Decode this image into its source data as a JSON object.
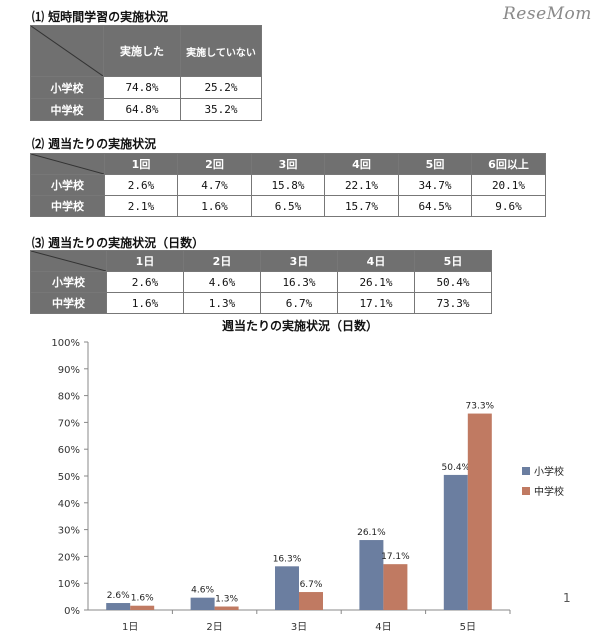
{
  "watermark": "ReseMom",
  "page_number": "1",
  "section1": {
    "title": "⑴ 短時間学習の実施状況",
    "columns": [
      "実施した",
      "実施していない"
    ],
    "rows": [
      {
        "label": "小学校",
        "values": [
          "74.8%",
          "25.2%"
        ]
      },
      {
        "label": "中学校",
        "values": [
          "64.8%",
          "35.2%"
        ]
      }
    ]
  },
  "section2": {
    "title": "⑵ 週当たりの実施状況",
    "columns": [
      "1回",
      "2回",
      "3回",
      "4回",
      "5回",
      "6回以上"
    ],
    "rows": [
      {
        "label": "小学校",
        "values": [
          "2.6%",
          "4.7%",
          "15.8%",
          "22.1%",
          "34.7%",
          "20.1%"
        ]
      },
      {
        "label": "中学校",
        "values": [
          "2.1%",
          "1.6%",
          "6.5%",
          "15.7%",
          "64.5%",
          "9.6%"
        ]
      }
    ]
  },
  "section3": {
    "title": "⑶ 週当たりの実施状況（日数）",
    "columns": [
      "1日",
      "2日",
      "3日",
      "4日",
      "5日"
    ],
    "rows": [
      {
        "label": "小学校",
        "values": [
          "2.6%",
          "4.6%",
          "16.3%",
          "26.1%",
          "50.4%"
        ]
      },
      {
        "label": "中学校",
        "values": [
          "1.6%",
          "1.3%",
          "6.7%",
          "17.1%",
          "73.3%"
        ]
      }
    ]
  },
  "chart_data": {
    "type": "bar",
    "title": "週当たりの実施状況（日数）",
    "categories": [
      "1日",
      "2日",
      "3日",
      "4日",
      "5日"
    ],
    "series": [
      {
        "name": "小学校",
        "color": "#6b7ea0",
        "values": [
          2.6,
          4.6,
          16.3,
          26.1,
          50.4
        ]
      },
      {
        "name": "中学校",
        "color": "#c07a62",
        "values": [
          1.6,
          1.3,
          6.7,
          17.1,
          73.3
        ]
      }
    ],
    "data_labels": [
      [
        "2.6%",
        "4.6%",
        "16.3%",
        "26.1%",
        "50.4%"
      ],
      [
        "1.6%",
        "1.3%",
        "6.7%",
        "17.1%",
        "73.3%"
      ]
    ],
    "ylim": [
      0,
      100
    ],
    "yticks": [
      "0%",
      "10%",
      "20%",
      "30%",
      "40%",
      "50%",
      "60%",
      "70%",
      "80%",
      "90%",
      "100%"
    ],
    "grid": false,
    "legend_position": "right"
  }
}
